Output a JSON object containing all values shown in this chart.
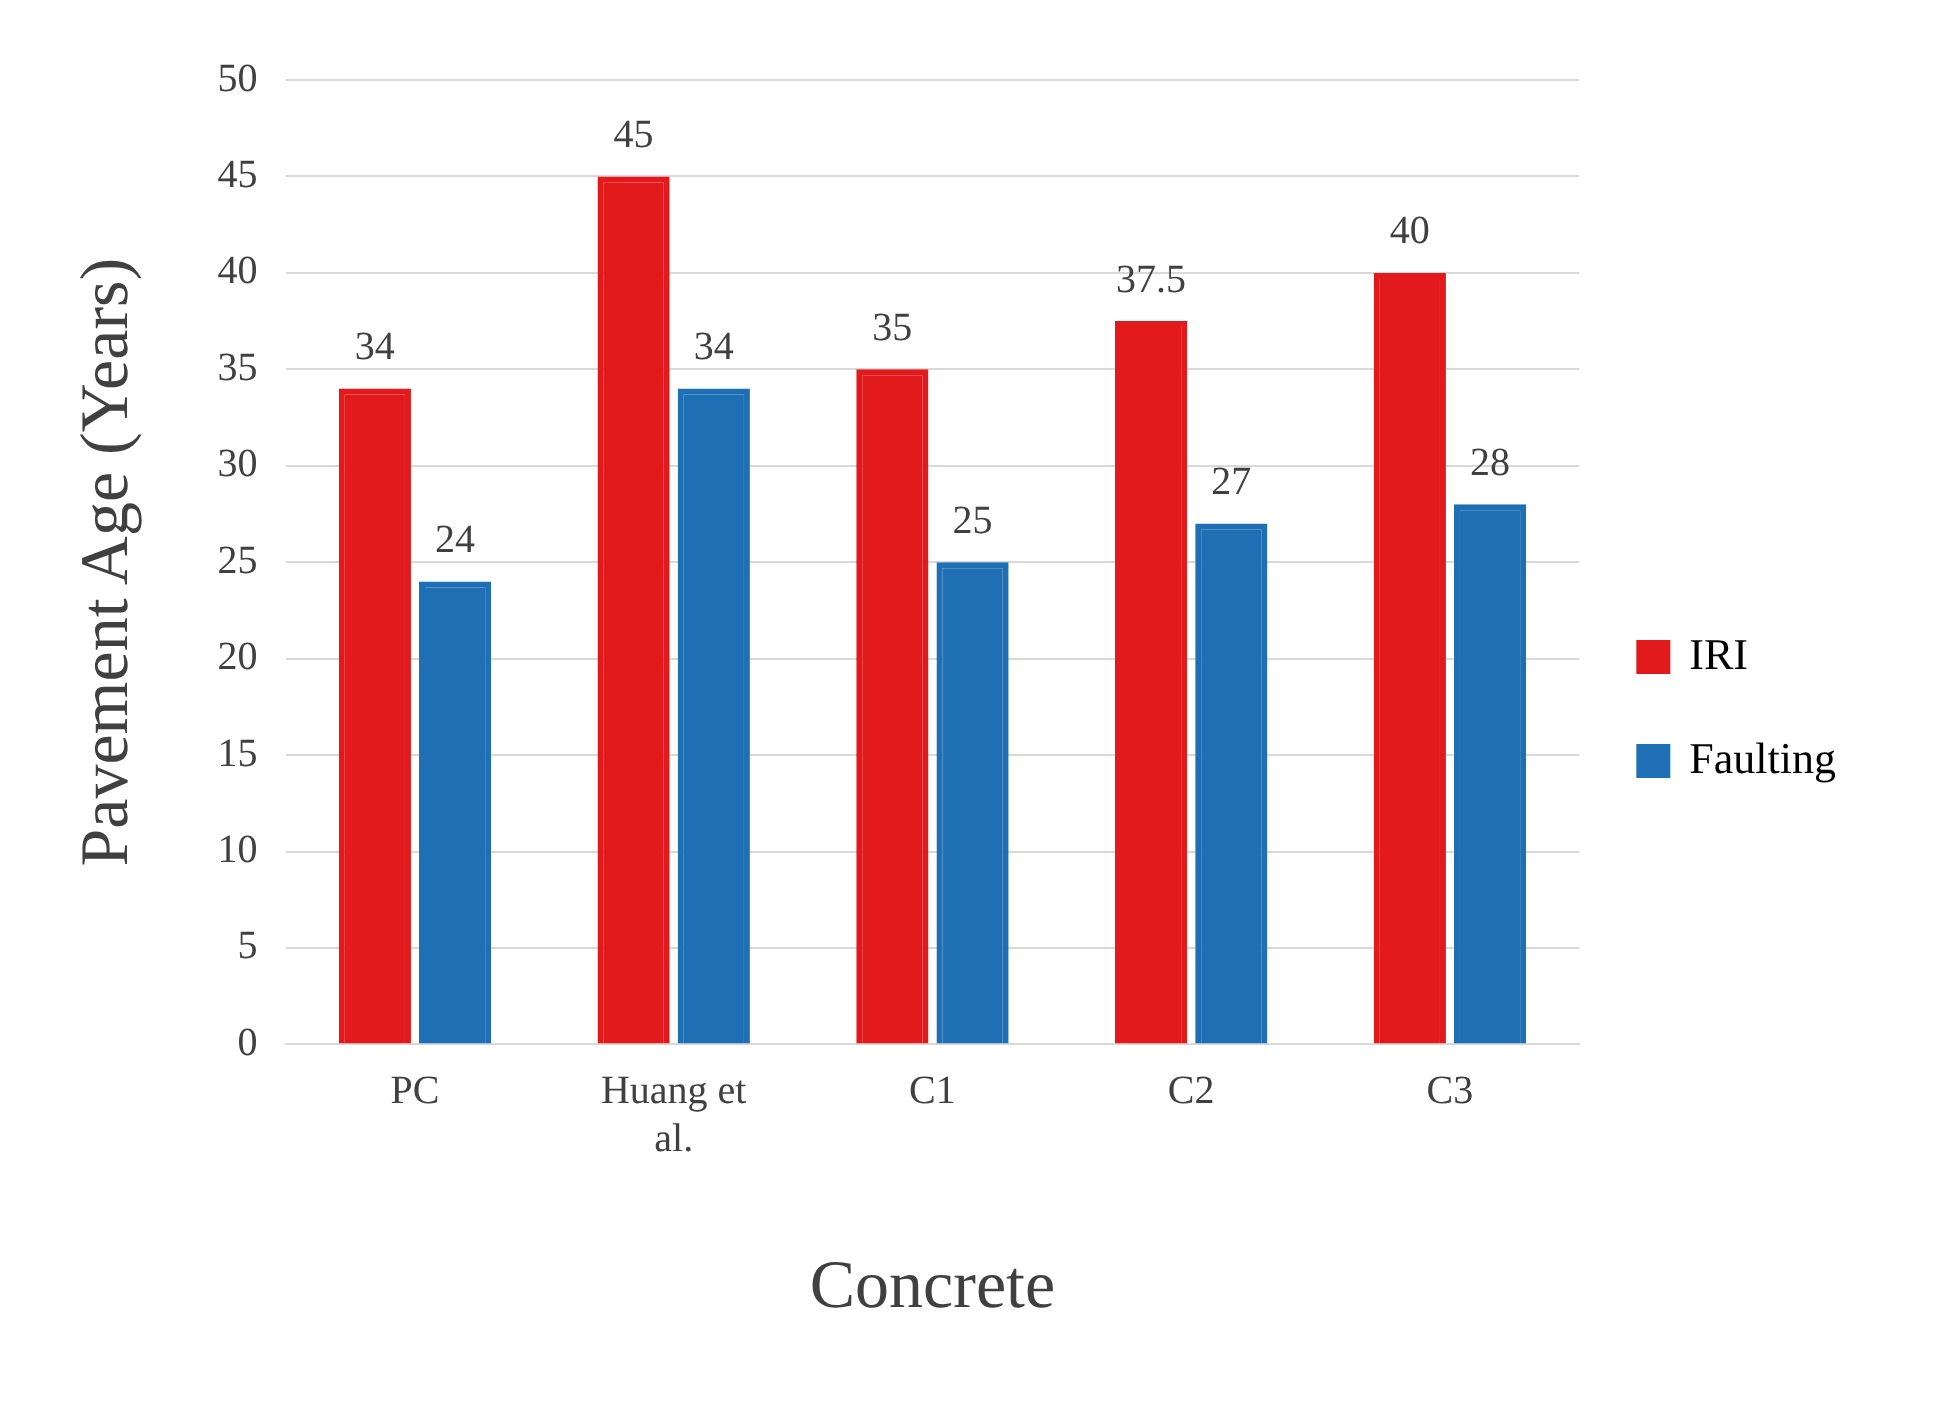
{
  "chart_data": {
    "type": "bar",
    "xlabel": "Concrete",
    "ylabel": "Pavement Age (Years)",
    "categories": [
      "PC",
      "Huang et al.",
      "C1",
      "C2",
      "C3"
    ],
    "series": [
      {
        "name": "IRI",
        "color": "#e31a1c",
        "values": [
          34,
          45,
          35,
          37.5,
          40
        ]
      },
      {
        "name": "Faulting",
        "color": "#1f6fb5",
        "values": [
          24,
          34,
          25,
          27,
          28
        ]
      }
    ],
    "ylim": [
      0,
      50
    ],
    "yticks": [
      0,
      5,
      10,
      15,
      20,
      25,
      30,
      35,
      40,
      45,
      50
    ],
    "grid": "y",
    "legend": "right",
    "data_labels": true
  }
}
